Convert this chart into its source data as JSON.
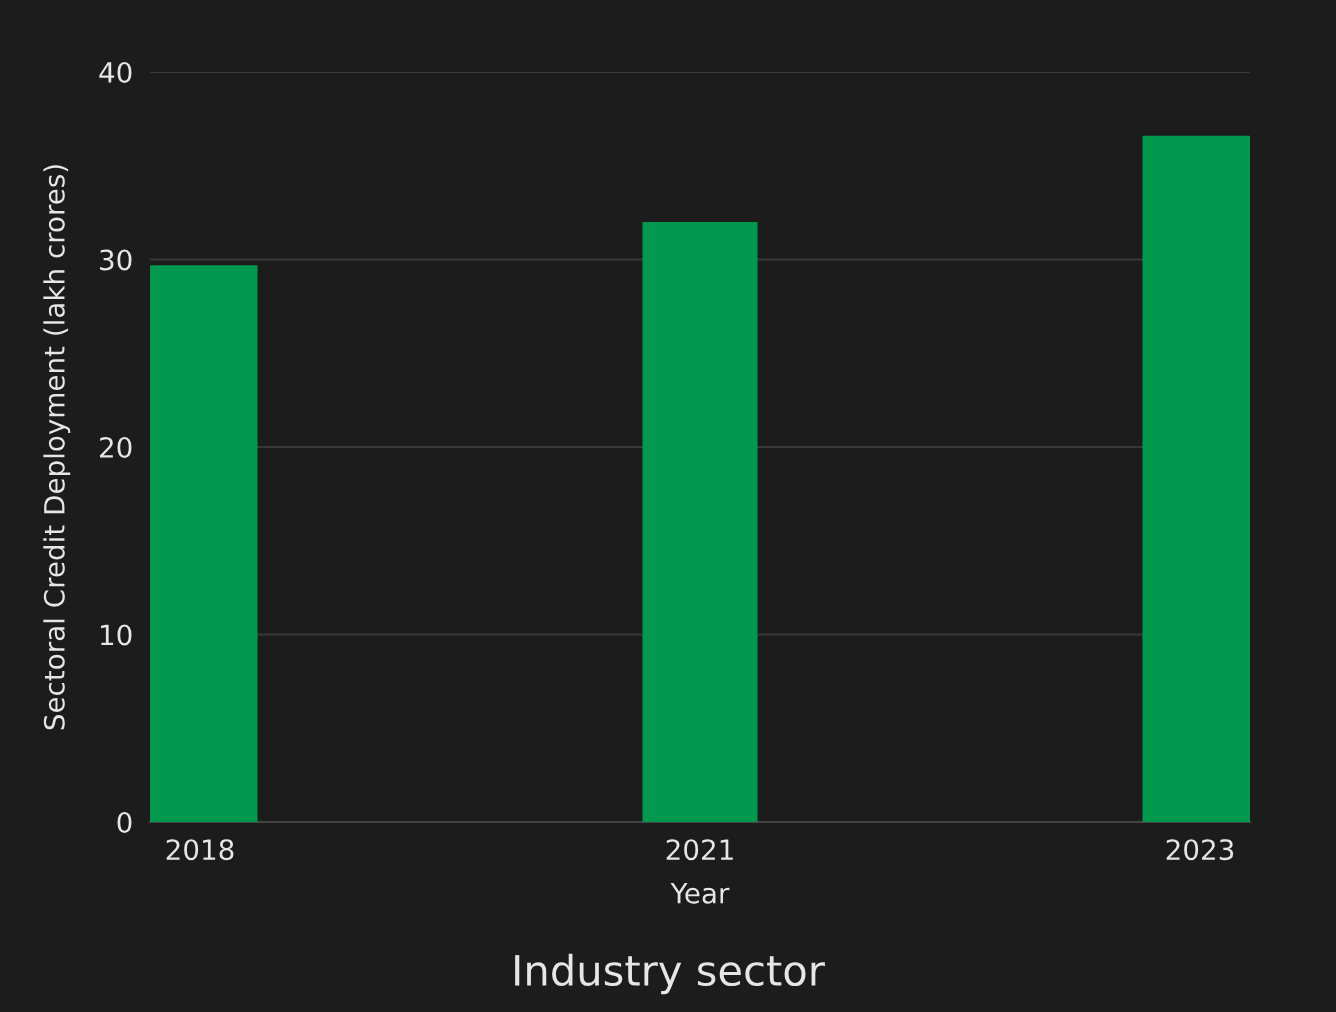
{
  "chart_data": {
    "type": "bar",
    "title": "Industry sector",
    "xlabel": "Year",
    "ylabel": "Sectoral Credit Deployment (lakh crores)",
    "categories": [
      "2018",
      "2021",
      "2023"
    ],
    "values": [
      29.7,
      32.0,
      36.6
    ],
    "color": "#00994d",
    "ylim": [
      0,
      40
    ],
    "yticks": [
      0,
      10,
      20,
      30,
      40
    ],
    "grid": "y"
  }
}
